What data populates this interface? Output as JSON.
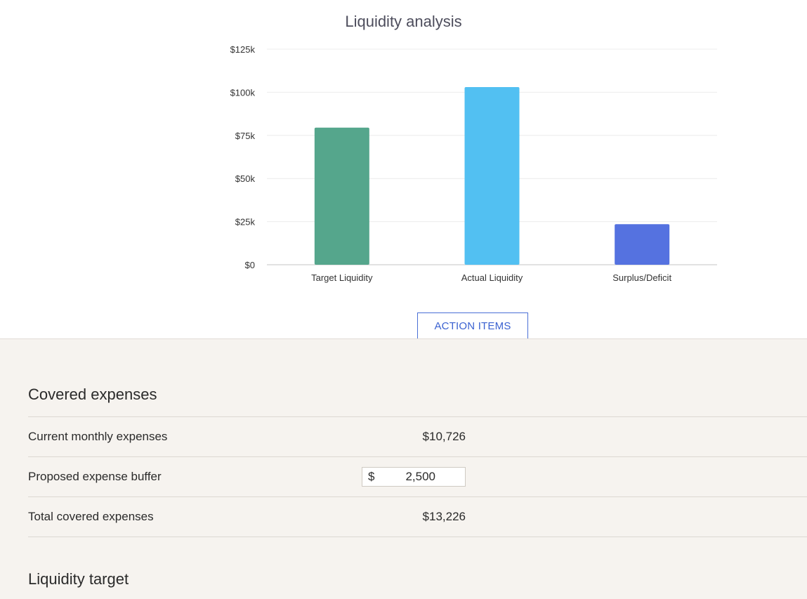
{
  "chart_data": {
    "type": "bar",
    "title": "Liquidity analysis",
    "categories": [
      "Target Liquidity",
      "Actual Liquidity",
      "Surplus/Deficit"
    ],
    "values": [
      79500,
      103000,
      23500
    ],
    "colors": [
      "#55a68c",
      "#52c0f2",
      "#5572e0"
    ],
    "yticks": [
      "$0",
      "$25k",
      "$50k",
      "$75k",
      "$100k",
      "$125k"
    ],
    "ylim": [
      0,
      125000
    ],
    "grid": true
  },
  "action_button": {
    "label": "ACTION ITEMS"
  },
  "covered_expenses": {
    "heading": "Covered expenses",
    "rows": [
      {
        "label": "Current monthly expenses",
        "value": "$10,726"
      },
      {
        "label": "Proposed expense buffer",
        "currency": "$",
        "value": "2,500"
      },
      {
        "label": "Total covered expenses",
        "value": "$13,226"
      }
    ]
  },
  "liquidity_target": {
    "heading": "Liquidity target"
  }
}
